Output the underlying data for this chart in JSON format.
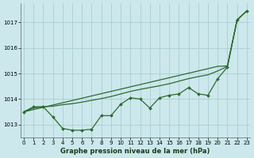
{
  "xlabel": "Graphe pression niveau de la mer (hPa)",
  "bg_color": "#cce8ec",
  "grid_color": "#aacdd4",
  "line_color": "#2d6a2d",
  "ylim": [
    1012.5,
    1017.75
  ],
  "xlim": [
    -0.3,
    23.3
  ],
  "yticks": [
    1013,
    1014,
    1015,
    1016,
    1017
  ],
  "xticks": [
    0,
    1,
    2,
    3,
    4,
    5,
    6,
    7,
    8,
    9,
    10,
    11,
    12,
    13,
    14,
    15,
    16,
    17,
    18,
    19,
    20,
    21,
    22,
    23
  ],
  "series_detail_x": [
    0,
    1,
    2,
    3,
    4,
    5,
    6,
    7,
    8,
    9,
    10,
    11,
    12,
    13,
    14,
    15,
    16,
    17,
    18,
    19,
    20,
    21,
    22,
    23
  ],
  "series_detail_y": [
    1013.5,
    1013.7,
    1013.7,
    1013.3,
    1012.85,
    1012.78,
    1012.78,
    1012.82,
    1013.35,
    1013.35,
    1013.8,
    1014.05,
    1014.0,
    1013.65,
    1014.05,
    1014.15,
    1014.2,
    1014.45,
    1014.2,
    1014.15,
    1014.8,
    1015.25,
    1017.1,
    1017.45
  ],
  "series_smooth1_x": [
    0,
    1,
    2,
    3,
    4,
    5,
    6,
    7,
    8,
    9,
    10,
    11,
    12,
    13,
    14,
    15,
    16,
    17,
    18,
    19,
    20,
    21,
    22,
    23
  ],
  "series_smooth1_y": [
    1013.5,
    1013.65,
    1013.7,
    1013.72,
    1013.78,
    1013.82,
    1013.88,
    1013.95,
    1014.02,
    1014.1,
    1014.2,
    1014.3,
    1014.38,
    1014.45,
    1014.52,
    1014.6,
    1014.7,
    1014.8,
    1014.88,
    1014.95,
    1015.1,
    1015.28,
    1017.1,
    1017.45
  ],
  "series_smooth2_x": [
    0,
    20,
    21,
    22,
    23
  ],
  "series_smooth2_y": [
    1013.5,
    1015.28,
    1015.3,
    1017.1,
    1017.45
  ]
}
